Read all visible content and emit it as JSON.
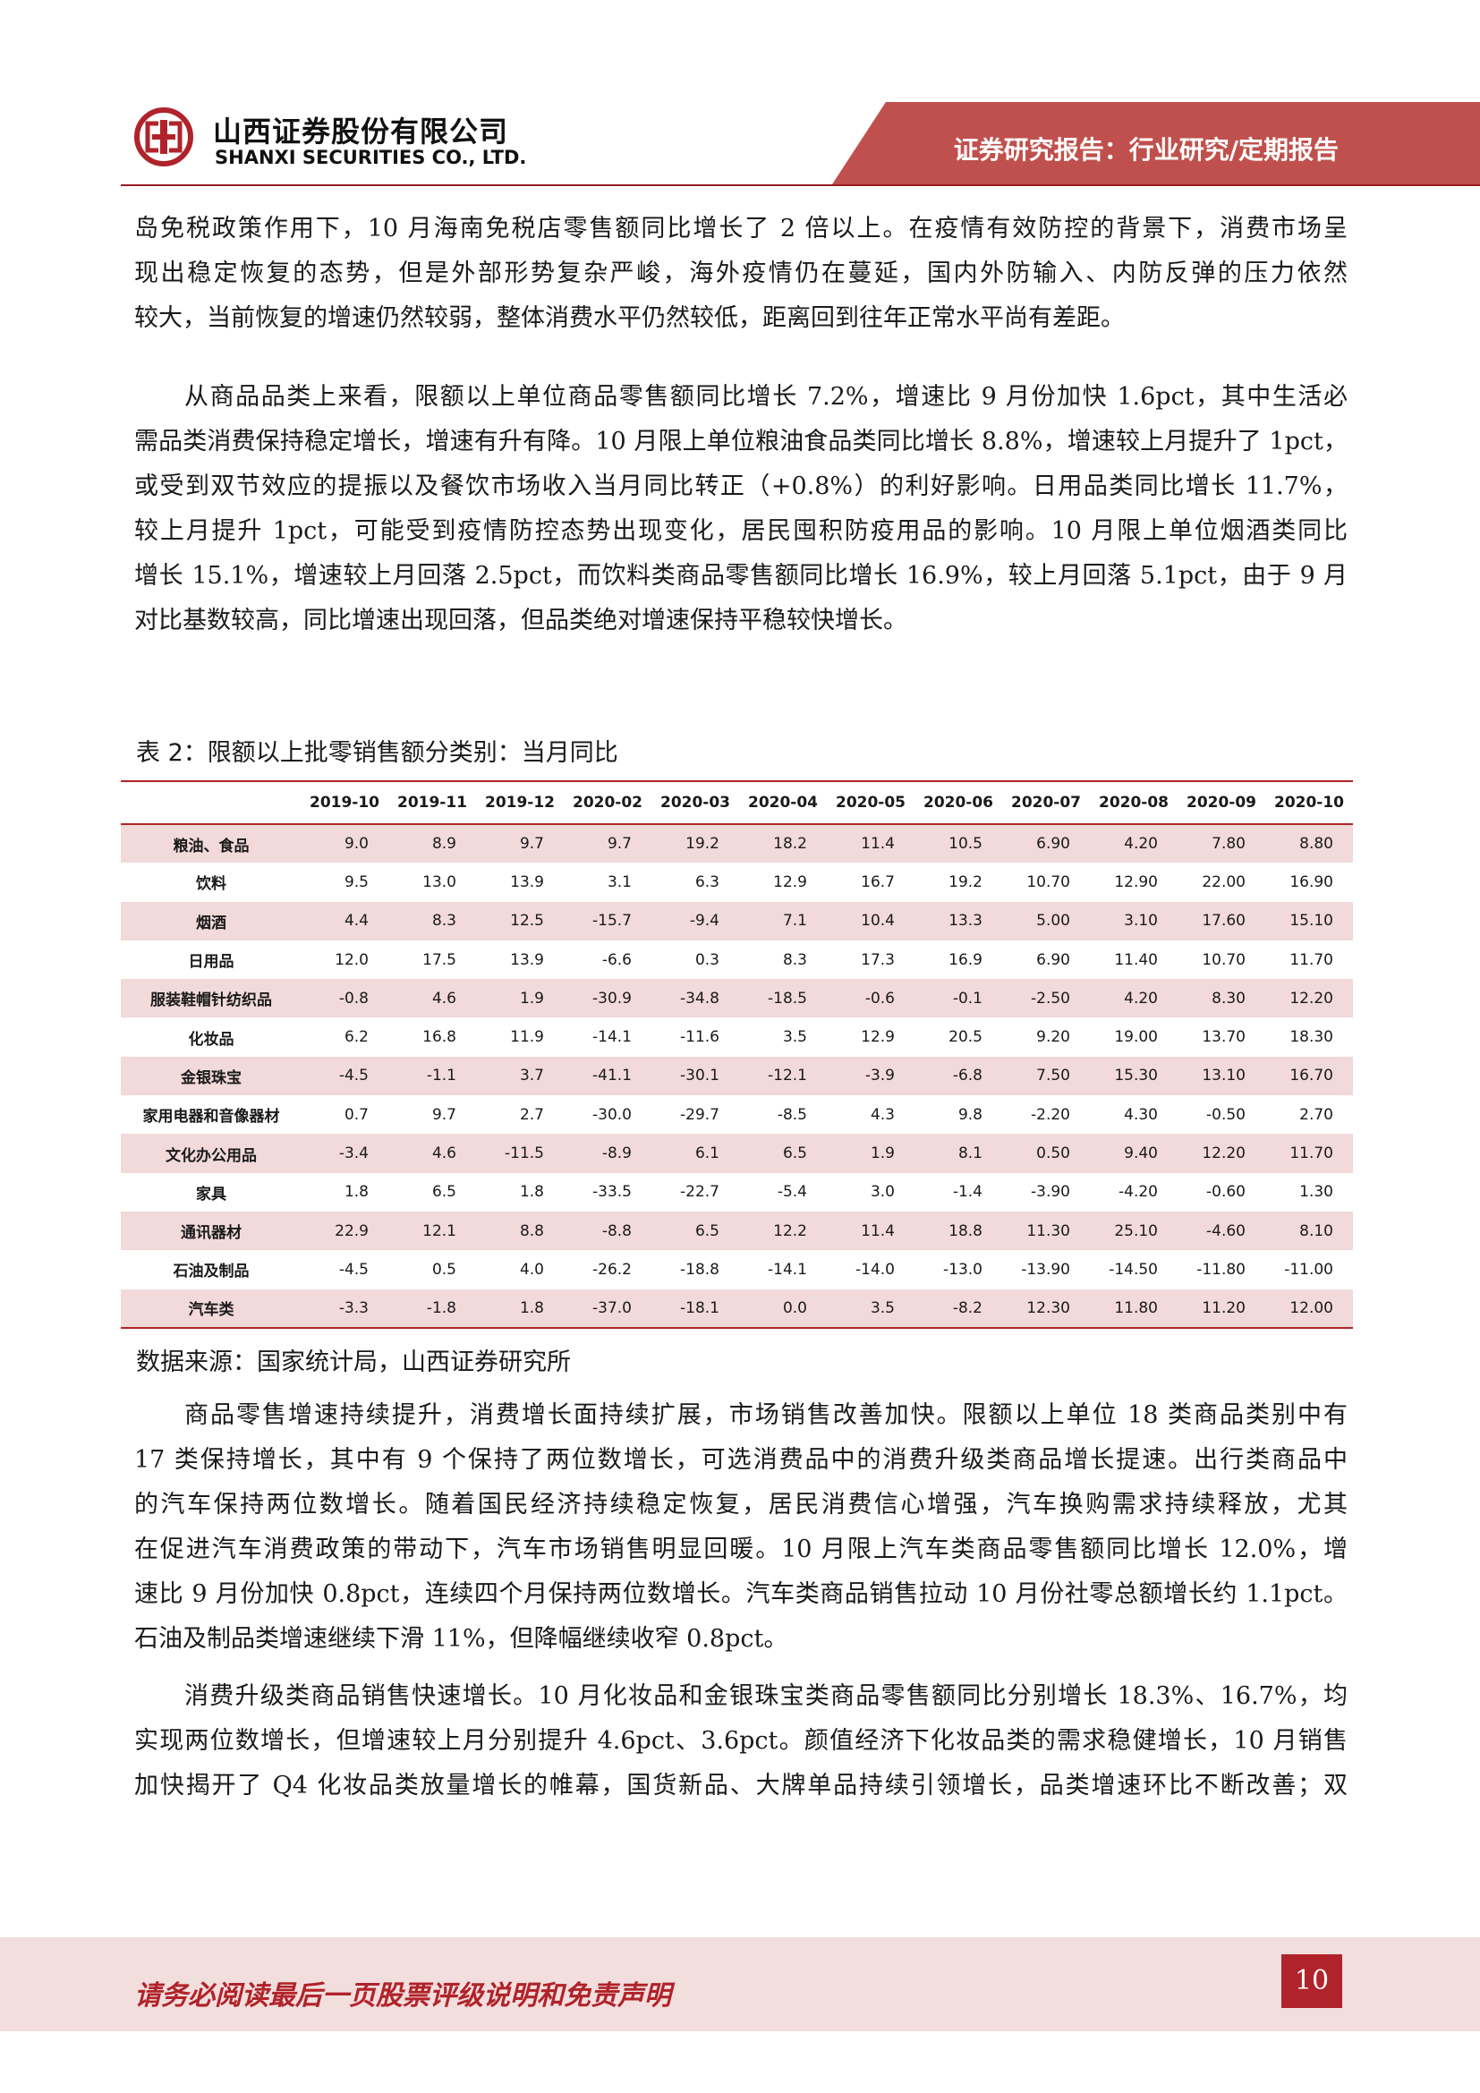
{
  "header": {
    "company_cn": "山西证券股份有限公司",
    "company_en": "SHANXI SECURITIES CO., LTD.",
    "report_type": "证券研究报告：行业研究/定期报告",
    "brand_color": "#b0232a"
  },
  "paragraphs": [
    {
      "lines": [
        "岛免税政策作用下，10 月海南免税店零售额同比增长了 2 倍以上。在疫情有效防控的背景下，消费市场呈",
        "现出稳定恢复的态势，但是外部形势复杂严峻，海外疫情仍在蔓延，国内外防输入、内防反弹的压力依然",
        "较大，当前恢复的增速仍然较弱，整体消费水平仍然较低，距离回到往年正常水平尚有差距。"
      ]
    },
    {
      "lines": [
        "从商品品类上来看，限额以上单位商品零售额同比增长 7.2%，增速比 9 月份加快 1.6pct，其中生活必",
        "需品类消费保持稳定增长，增速有升有降。10 月限上单位粮油食品类同比增长 8.8%，增速较上月提升了 1pct，",
        "或受到双节效应的提振以及餐饮市场收入当月同比转正（+0.8%）的利好影响。日用品类同比增长 11.7%，",
        "较上月提升 1pct，可能受到疫情防控态势出现变化，居民囤积防疫用品的影响。10 月限上单位烟酒类同比",
        "增长 15.1%，增速较上月回落 2.5pct，而饮料类商品零售额同比增长 16.9%，较上月回落 5.1pct，由于 9 月",
        "对比基数较高，同比增速出现回落，但品类绝对增速保持平稳较快增长。"
      ]
    },
    {
      "lines": [
        "商品零售增速持续提升，消费增长面持续扩展，市场销售改善加快。限额以上单位 18 类商品类别中有",
        "17 类保持增长，其中有 9 个保持了两位数增长，可选消费品中的消费升级类商品增长提速。出行类商品中",
        "的汽车保持两位数增长。随着国民经济持续稳定恢复，居民消费信心增强，汽车换购需求持续释放，尤其",
        "在促进汽车消费政策的带动下，汽车市场销售明显回暖。10 月限上汽车类商品零售额同比增长 12.0%，增",
        "速比 9 月份加快 0.8pct，连续四个月保持两位数增长。汽车类商品销售拉动 10 月份社零总额增长约 1.1pct。",
        "石油及制品类增速继续下滑 11%，但降幅继续收窄 0.8pct。"
      ]
    },
    {
      "lines": [
        "消费升级类商品销售快速增长。10 月化妆品和金银珠宝类商品零售额同比分别增长 18.3%、16.7%，均",
        "实现两位数增长，但增速较上月分别提升 4.6pct、3.6pct。颜值经济下化妆品类的需求稳健增长，10 月销售",
        "加快揭开了 Q4 化妆品类放量增长的帷幕，国货新品、大牌单品持续引领增长，品类增速环比不断改善；双"
      ]
    }
  ],
  "table": {
    "title": "表 2：限额以上批零销售额分类别：当月同比",
    "columns": [
      "",
      "2019-10",
      "2019-11",
      "2019-12",
      "2020-02",
      "2020-03",
      "2020-04",
      "2020-05",
      "2020-06",
      "2020-07",
      "2020-08",
      "2020-09",
      "2020-10"
    ],
    "rows": [
      {
        "category": "粮油、食品",
        "values": [
          "9.0",
          "8.9",
          "9.7",
          "9.7",
          "19.2",
          "18.2",
          "11.4",
          "10.5",
          "6.90",
          "4.20",
          "7.80",
          "8.80"
        ]
      },
      {
        "category": "饮料",
        "values": [
          "9.5",
          "13.0",
          "13.9",
          "3.1",
          "6.3",
          "12.9",
          "16.7",
          "19.2",
          "10.70",
          "12.90",
          "22.00",
          "16.90"
        ]
      },
      {
        "category": "烟酒",
        "values": [
          "4.4",
          "8.3",
          "12.5",
          "-15.7",
          "-9.4",
          "7.1",
          "10.4",
          "13.3",
          "5.00",
          "3.10",
          "17.60",
          "15.10"
        ]
      },
      {
        "category": "日用品",
        "values": [
          "12.0",
          "17.5",
          "13.9",
          "-6.6",
          "0.3",
          "8.3",
          "17.3",
          "16.9",
          "6.90",
          "11.40",
          "10.70",
          "11.70"
        ]
      },
      {
        "category": "服装鞋帽针纺织品",
        "values": [
          "-0.8",
          "4.6",
          "1.9",
          "-30.9",
          "-34.8",
          "-18.5",
          "-0.6",
          "-0.1",
          "-2.50",
          "4.20",
          "8.30",
          "12.20"
        ]
      },
      {
        "category": "化妆品",
        "values": [
          "6.2",
          "16.8",
          "11.9",
          "-14.1",
          "-11.6",
          "3.5",
          "12.9",
          "20.5",
          "9.20",
          "19.00",
          "13.70",
          "18.30"
        ]
      },
      {
        "category": "金银珠宝",
        "values": [
          "-4.5",
          "-1.1",
          "3.7",
          "-41.1",
          "-30.1",
          "-12.1",
          "-3.9",
          "-6.8",
          "7.50",
          "15.30",
          "13.10",
          "16.70"
        ]
      },
      {
        "category": "家用电器和音像器材",
        "values": [
          "0.7",
          "9.7",
          "2.7",
          "-30.0",
          "-29.7",
          "-8.5",
          "4.3",
          "9.8",
          "-2.20",
          "4.30",
          "-0.50",
          "2.70"
        ]
      },
      {
        "category": "文化办公用品",
        "values": [
          "-3.4",
          "4.6",
          "-11.5",
          "-8.9",
          "6.1",
          "6.5",
          "1.9",
          "8.1",
          "0.50",
          "9.40",
          "12.20",
          "11.70"
        ]
      },
      {
        "category": "家具",
        "values": [
          "1.8",
          "6.5",
          "1.8",
          "-33.5",
          "-22.7",
          "-5.4",
          "3.0",
          "-1.4",
          "-3.90",
          "-4.20",
          "-0.60",
          "1.30"
        ]
      },
      {
        "category": "通讯器材",
        "values": [
          "22.9",
          "12.1",
          "8.8",
          "-8.8",
          "6.5",
          "12.2",
          "11.4",
          "18.8",
          "11.30",
          "25.10",
          "-4.60",
          "8.10"
        ]
      },
      {
        "category": "石油及制品",
        "values": [
          "-4.5",
          "0.5",
          "4.0",
          "-26.2",
          "-18.8",
          "-14.1",
          "-14.0",
          "-13.0",
          "-13.90",
          "-14.50",
          "-11.80",
          "-11.00"
        ]
      },
      {
        "category": "汽车类",
        "values": [
          "-3.3",
          "-1.8",
          "1.8",
          "-37.0",
          "-18.1",
          "0.0",
          "3.5",
          "-8.2",
          "12.30",
          "11.80",
          "11.20",
          "12.00"
        ]
      }
    ],
    "source": "数据来源：国家统计局，山西证券研究所"
  },
  "footer": {
    "disclaimer": "请务必阅读最后一页股票评级说明和免责声明",
    "page_number": "10"
  }
}
